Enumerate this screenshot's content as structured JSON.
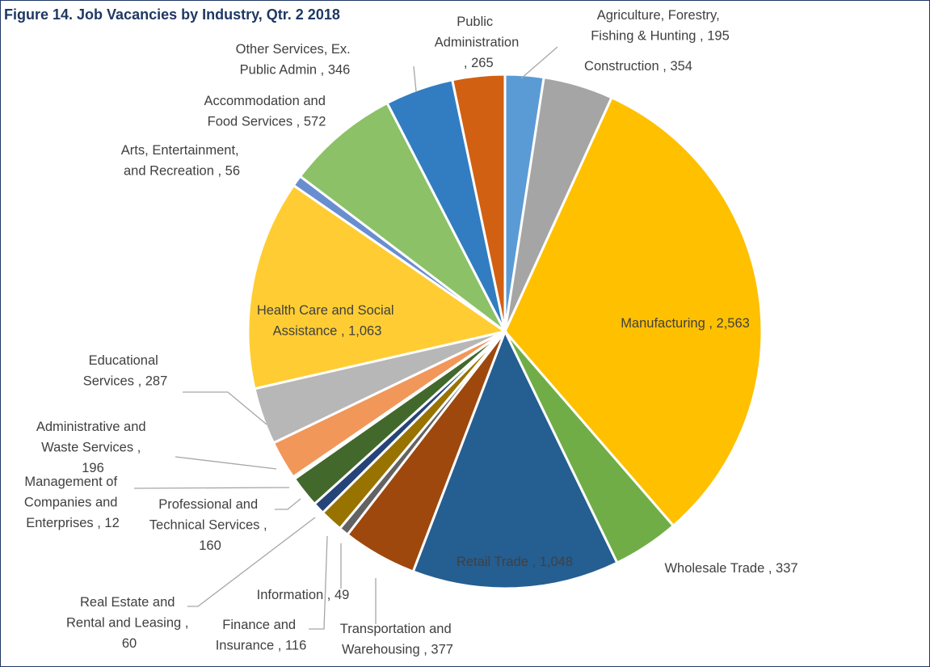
{
  "chart_data": {
    "type": "pie",
    "title": "Figure 14. Job Vacancies by Industry, Qtr. 2 2018",
    "label_separator": ",",
    "categories": [
      "Agriculture, Forestry, Fishing & Hunting",
      "Construction",
      "Manufacturing",
      "Wholesale Trade",
      "Retail Trade",
      "Transportation and Warehousing",
      "Information",
      "Finance and Insurance",
      "Real Estate and Rental and Leasing",
      "Professional and Technical Services",
      "Management of Companies and Enterprises",
      "Administrative and Waste Services",
      "Educational Services",
      "Health Care and Social Assistance",
      "Arts, Entertainment, and Recreation",
      "Accommodation and Food Services",
      "Other Services, Ex. Public Admin",
      "Public Administration"
    ],
    "values": [
      195,
      354,
      2563,
      337,
      1048,
      377,
      49,
      116,
      60,
      160,
      12,
      196,
      287,
      1063,
      56,
      572,
      346,
      265
    ],
    "value_labels": [
      "195",
      "354",
      "2,563",
      "337",
      "1,048",
      "377",
      "49",
      "116",
      "60",
      "160",
      "12",
      "196",
      "287",
      "1,063",
      "56",
      "572",
      "346",
      "265"
    ],
    "colors": [
      "#5b9bd5",
      "#a5a5a5",
      "#ffc000",
      "#70ad47",
      "#255e91",
      "#9e480e",
      "#636363",
      "#997300",
      "#264478",
      "#43682b",
      "#7cafdd",
      "#f1975a",
      "#b7b7b7",
      "#ffcd33",
      "#698ed0",
      "#8cc168",
      "#327dc2",
      "#d26012"
    ]
  }
}
